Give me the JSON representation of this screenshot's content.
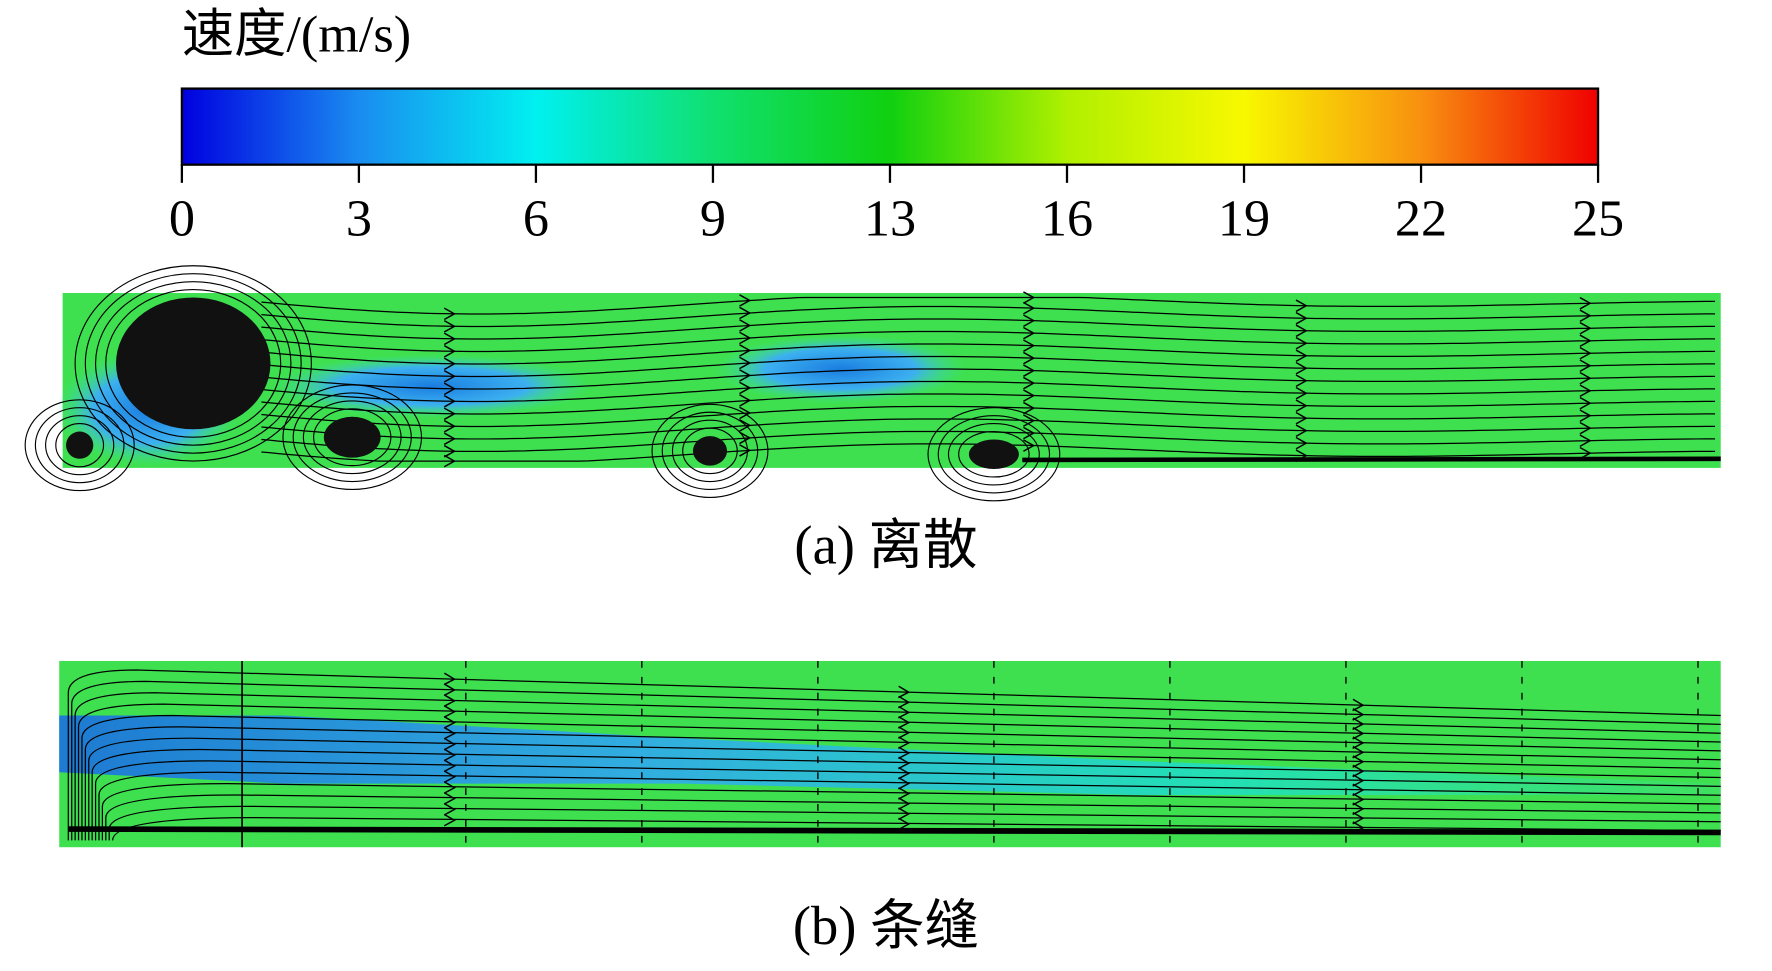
{
  "colorbar": {
    "title": "速度/(m/s)",
    "lim": [
      0,
      25
    ],
    "ticks": [
      0,
      {
        "value": 3.125,
        "label": "3"
      },
      {
        "value": 6.25,
        "label": "6"
      },
      {
        "value": 9.375,
        "label": "9"
      },
      {
        "value": 12.5,
        "label": "13"
      },
      {
        "value": 15.625,
        "label": "16"
      },
      {
        "value": 18.75,
        "label": "19"
      },
      {
        "value": 21.875,
        "label": "22"
      },
      25
    ],
    "colormap": [
      "#0000e0",
      "#1a8cf0",
      "#00f0f0",
      "#10e070",
      "#10d010",
      "#b0f000",
      "#f8f800",
      "#f89010",
      "#f00000"
    ]
  },
  "panels": [
    {
      "caption": "(a) 离散"
    },
    {
      "caption": "(b) 条缝"
    }
  ]
}
